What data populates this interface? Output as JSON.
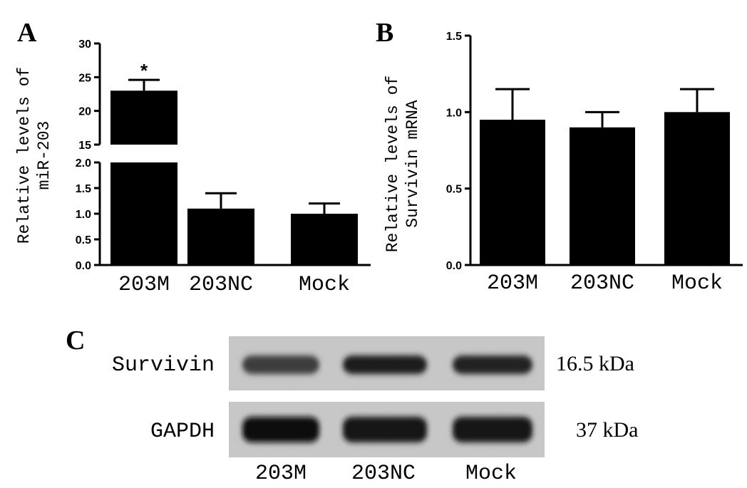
{
  "chart_data": [
    {
      "panel": "A",
      "type": "bar",
      "categories": [
        "203M",
        "203NC",
        "Mock"
      ],
      "values": [
        23.0,
        1.1,
        1.0
      ],
      "errors": [
        1.6,
        0.3,
        0.2
      ],
      "ylabel_lines": [
        "Relative levels of",
        "miR-203"
      ],
      "axis_break": true,
      "segments": [
        {
          "ylim": [
            0,
            2.0
          ],
          "ticks": [
            "0.0",
            "0.5",
            "1.0",
            "1.5",
            "2.0"
          ]
        },
        {
          "ylim": [
            15,
            30
          ],
          "ticks": [
            "15",
            "20",
            "25",
            "30"
          ]
        }
      ],
      "annotations": [
        {
          "category": "203M",
          "text": "*"
        }
      ]
    },
    {
      "panel": "B",
      "type": "bar",
      "categories": [
        "203M",
        "203NC",
        "Mock"
      ],
      "values": [
        0.95,
        0.9,
        1.0
      ],
      "errors": [
        0.2,
        0.1,
        0.15
      ],
      "ylabel_lines": [
        "Relative levels of",
        "Survivin mRNA"
      ],
      "ylim": [
        0,
        1.5
      ],
      "ticks": [
        "0.0",
        "0.5",
        "1.0",
        "1.5"
      ]
    }
  ],
  "blot": {
    "panel": "C",
    "rows": [
      {
        "label": "Survivin",
        "size": "16.5 kDa",
        "intensity": [
          0.55,
          0.85,
          0.8
        ]
      },
      {
        "label": "GAPDH",
        "size": "37 kDa",
        "intensity": [
          1.0,
          0.95,
          0.95
        ]
      }
    ],
    "lanes": [
      "203M",
      "203NC",
      "Mock"
    ]
  }
}
